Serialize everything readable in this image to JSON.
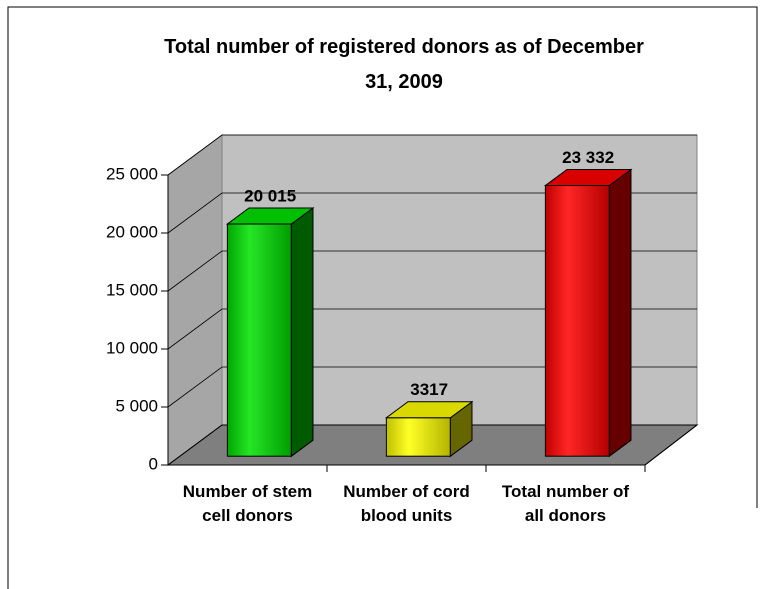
{
  "chart_data": {
    "type": "bar3d",
    "title": "Total number of registered donors as of December 31, 2009",
    "categories": [
      "Number of stem cell donors",
      "Number of cord blood units",
      "Total number of  all donors"
    ],
    "values": [
      20015,
      3317,
      23332
    ],
    "value_labels": [
      "20 015",
      "3317",
      "23 332"
    ],
    "colors": [
      "#00e000",
      "#ffff00",
      "#ff0000"
    ],
    "ylim": [
      0,
      25000
    ],
    "yticks": [
      0,
      {
        "value": 5000,
        "label": "5 000"
      },
      {
        "value": 10000,
        "label": "10 000"
      },
      {
        "value": 15000,
        "label": "15 000"
      },
      {
        "value": 20000,
        "label": "20 000"
      },
      {
        "value": 25000,
        "label": "25 000"
      }
    ],
    "grid": true
  }
}
